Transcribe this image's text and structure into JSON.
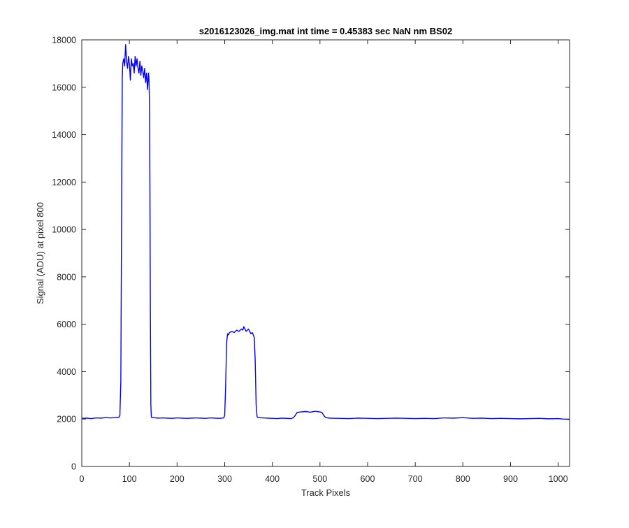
{
  "chart_data": {
    "type": "line",
    "title": "s2016123026_img.mat int time = 0.45383 sec  NaN nm BS02",
    "xlabel": "Track Pixels",
    "ylabel": "Signal (ADU) at pixel 800",
    "xlim": [
      0,
      1024
    ],
    "ylim": [
      0,
      18000
    ],
    "xticks": [
      0,
      100,
      200,
      300,
      400,
      500,
      600,
      700,
      800,
      900,
      1000
    ],
    "yticks": [
      0,
      2000,
      4000,
      6000,
      8000,
      10000,
      12000,
      14000,
      16000,
      18000
    ],
    "grid": false,
    "legend": "none",
    "series": [
      {
        "color": "#0000ff",
        "x": [
          0,
          10,
          20,
          30,
          40,
          50,
          60,
          70,
          78,
          80,
          82,
          84,
          85,
          86,
          88,
          90,
          92,
          94,
          96,
          98,
          100,
          102,
          104,
          106,
          108,
          110,
          112,
          114,
          116,
          118,
          120,
          122,
          124,
          126,
          128,
          130,
          132,
          134,
          136,
          138,
          140,
          141,
          142,
          143,
          144,
          145,
          146,
          147,
          150,
          160,
          170,
          180,
          190,
          200,
          210,
          220,
          230,
          240,
          250,
          260,
          270,
          280,
          290,
          298,
          300,
          302,
          304,
          306,
          308,
          310,
          315,
          320,
          325,
          330,
          335,
          338,
          340,
          345,
          350,
          355,
          358,
          360,
          362,
          364,
          366,
          368,
          370,
          380,
          390,
          400,
          410,
          420,
          440,
          444,
          448,
          452,
          460,
          470,
          480,
          490,
          500,
          504,
          508,
          512,
          520,
          540,
          560,
          580,
          600,
          620,
          640,
          660,
          680,
          700,
          720,
          740,
          760,
          780,
          800,
          820,
          840,
          860,
          880,
          900,
          920,
          940,
          960,
          980,
          1000,
          1010,
          1020,
          1024
        ],
        "y": [
          2030,
          2040,
          2020,
          2050,
          2040,
          2060,
          2050,
          2060,
          2080,
          2150,
          3600,
          12500,
          16400,
          17000,
          17200,
          16900,
          17800,
          17100,
          16800,
          17300,
          17000,
          16300,
          17200,
          16900,
          17000,
          16600,
          17300,
          16900,
          17200,
          16800,
          16600,
          17100,
          16500,
          16900,
          16700,
          16400,
          16800,
          16200,
          16600,
          15900,
          16600,
          16400,
          15500,
          12000,
          6500,
          2600,
          2100,
          2060,
          2060,
          2040,
          2050,
          2040,
          2030,
          2050,
          2040,
          2030,
          2040,
          2050,
          2040,
          2030,
          2050,
          2040,
          2030,
          2050,
          2150,
          3400,
          5200,
          5600,
          5550,
          5650,
          5700,
          5650,
          5750,
          5700,
          5800,
          5750,
          5900,
          5700,
          5800,
          5600,
          5650,
          5550,
          5450,
          4500,
          2600,
          2100,
          2060,
          2050,
          2040,
          2030,
          2020,
          2040,
          2020,
          2060,
          2150,
          2280,
          2300,
          2320,
          2290,
          2330,
          2300,
          2280,
          2150,
          2060,
          2040,
          2030,
          2020,
          2040,
          2030,
          2020,
          2030,
          2040,
          2030,
          2020,
          2030,
          2020,
          2050,
          2040,
          2060,
          2030,
          2040,
          2020,
          2030,
          2020,
          2010,
          2020,
          2030,
          2010,
          2020,
          2000,
          1990,
          1980
        ]
      }
    ]
  }
}
